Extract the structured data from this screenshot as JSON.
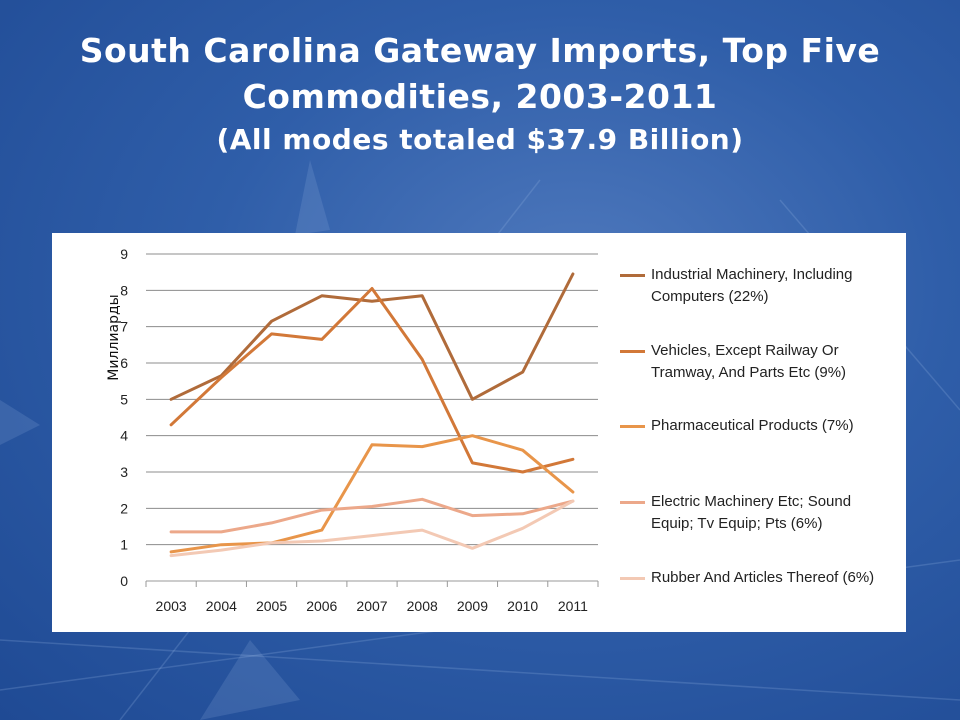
{
  "slide": {
    "title": "South Carolina Gateway Imports, Top Five Commodities, 2003-2011",
    "subtitle": "(All modes totaled $37.9 Billion)"
  },
  "colors": {
    "background": "#2f5ea9",
    "series": [
      "#b06b3a",
      "#d27838",
      "#e8954a",
      "#eca88a",
      "#f3c9b4"
    ]
  },
  "chart_data": {
    "type": "line",
    "title": "",
    "xlabel": "",
    "ylabel": "Миллиарды",
    "x": [
      "2003",
      "2004",
      "2005",
      "2006",
      "2007",
      "2008",
      "2009",
      "2010",
      "2011"
    ],
    "ylim": [
      0,
      9
    ],
    "yticks": [
      "0",
      "1",
      "2",
      "3",
      "4",
      "5",
      "6",
      "7",
      "8",
      "9"
    ],
    "grid": true,
    "legend_position": "right",
    "series": [
      {
        "name": "Industrial Machinery, Including Computers (22%)",
        "color": "#b06b3a",
        "values": [
          5.0,
          5.65,
          7.15,
          7.85,
          7.7,
          7.85,
          5.0,
          5.75,
          8.45
        ]
      },
      {
        "name": "Vehicles, Except Railway Or Tramway, And Parts Etc (9%)",
        "color": "#d27838",
        "values": [
          4.3,
          5.6,
          6.8,
          6.65,
          8.05,
          6.1,
          3.25,
          3.0,
          3.35
        ]
      },
      {
        "name": "Pharmaceutical Products (7%)",
        "color": "#e8954a",
        "values": [
          0.8,
          1.0,
          1.05,
          1.4,
          3.75,
          3.7,
          4.0,
          3.6,
          2.45
        ]
      },
      {
        "name": "Electric Machinery Etc; Sound Equip; Tv Equip; Pts (6%)",
        "color": "#eca88a",
        "values": [
          1.35,
          1.35,
          1.6,
          1.95,
          2.05,
          2.25,
          1.8,
          1.85,
          2.2
        ]
      },
      {
        "name": "Rubber And Articles Thereof (6%)",
        "color": "#f3c9b4",
        "values": [
          0.7,
          0.85,
          1.05,
          1.1,
          1.25,
          1.4,
          0.9,
          1.45,
          2.2
        ]
      }
    ]
  }
}
